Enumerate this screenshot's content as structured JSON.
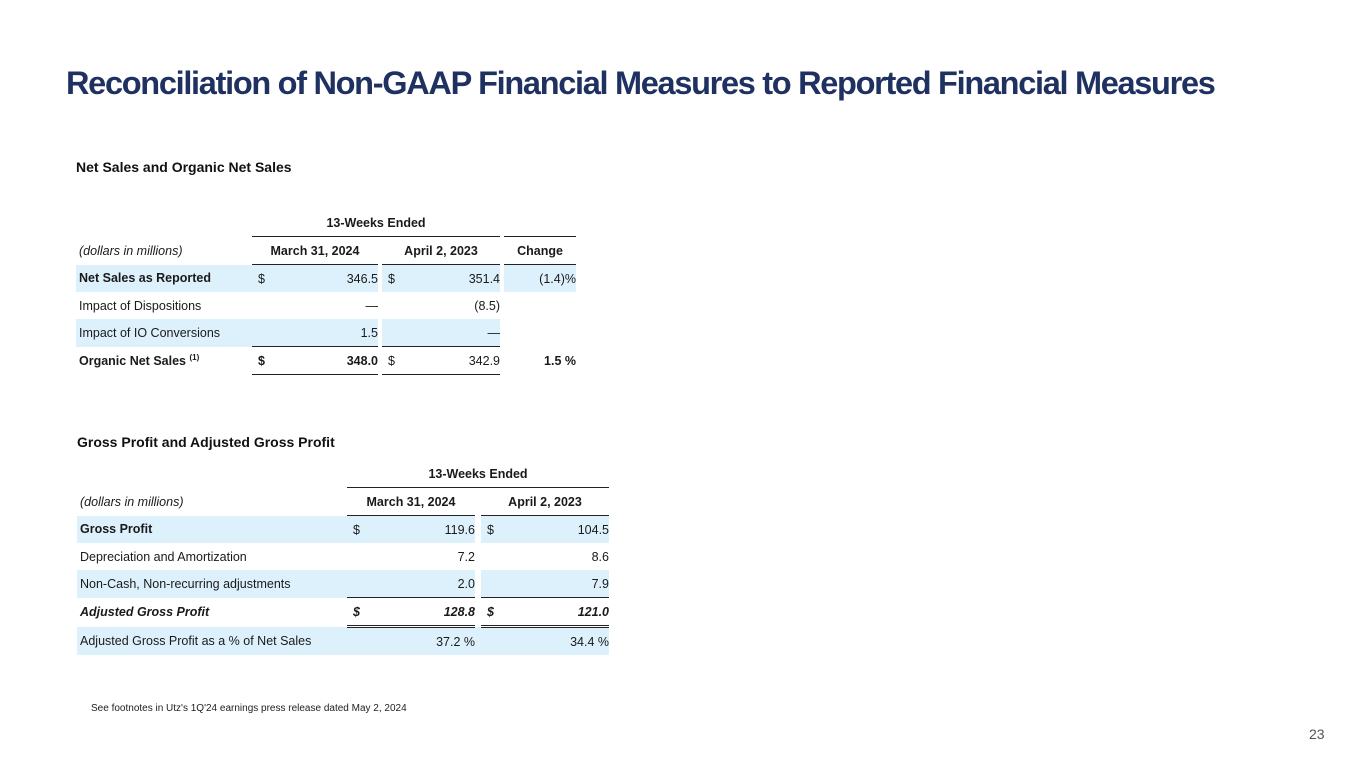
{
  "title": "Reconciliation of Non-GAAP Financial Measures to Reported Financial Measures",
  "table1": {
    "title": "Net Sales and Organic Net Sales",
    "period_header": "13-Weeks Ended",
    "units_label": "(dollars in millions)",
    "col_current": "March 31, 2024",
    "col_prior": "April 2, 2023",
    "col_change": "Change",
    "rows": [
      {
        "label": "Net Sales as Reported",
        "cur_sign": "$",
        "cur": "346.5",
        "prior_sign": "$",
        "prior": "351.4",
        "change": "(1.4)%"
      },
      {
        "label": "Impact of Dispositions",
        "cur_sign": "",
        "cur": "—",
        "prior_sign": "",
        "prior": "(8.5)",
        "change": ""
      },
      {
        "label": "Impact of IO Conversions",
        "cur_sign": "",
        "cur": "1.5",
        "prior_sign": "",
        "prior": "—",
        "change": ""
      },
      {
        "label": "Organic Net Sales",
        "footnote_mark": "(1)",
        "cur_sign": "$",
        "cur": "348.0",
        "prior_sign": "$",
        "prior": "342.9",
        "change": "1.5 %"
      }
    ]
  },
  "table2": {
    "title": "Gross Profit and Adjusted Gross Profit",
    "period_header": "13-Weeks Ended",
    "units_label": "(dollars in millions)",
    "col_current": "March 31, 2024",
    "col_prior": "April 2, 2023",
    "rows": [
      {
        "label": "Gross Profit",
        "cur_sign": "$",
        "cur": "119.6",
        "prior_sign": "$",
        "prior": "104.5"
      },
      {
        "label": "Depreciation and Amortization",
        "cur_sign": "",
        "cur": "7.2",
        "prior_sign": "",
        "prior": "8.6"
      },
      {
        "label": "Non-Cash, Non-recurring adjustments",
        "cur_sign": "",
        "cur": "2.0",
        "prior_sign": "",
        "prior": "7.9"
      },
      {
        "label": "Adjusted Gross Profit",
        "cur_sign": "$",
        "cur": "128.8",
        "prior_sign": "$",
        "prior": "121.0"
      },
      {
        "label": "Adjusted Gross Profit as a % of Net Sales",
        "cur_sign": "",
        "cur": "37.2 %",
        "prior_sign": "",
        "prior": "34.4 %"
      }
    ]
  },
  "footnote": "See footnotes in Utz's 1Q'24 earnings press release dated May 2, 2024",
  "page_number": "23",
  "colors": {
    "title": "#1f3161",
    "row_shade": "#ddf1fd"
  }
}
